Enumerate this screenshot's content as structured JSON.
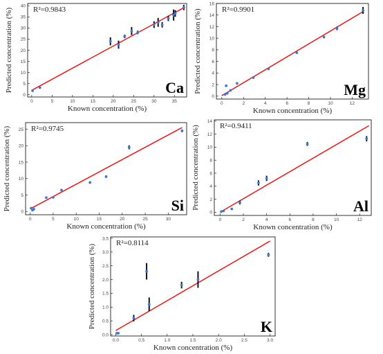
{
  "chart_data": [
    {
      "type": "scatter",
      "element": "Ca",
      "r2": "R²=0.9843",
      "xlabel": "Known concentration  (%)",
      "ylabel": "Predicted  concentration  (%)",
      "xlim": [
        -1,
        38
      ],
      "ylim": [
        -1,
        41
      ],
      "xticks": [
        0,
        5,
        10,
        15,
        20,
        25,
        30,
        35
      ],
      "yticks": [
        0,
        5,
        10,
        15,
        20,
        25,
        30,
        35,
        40
      ],
      "points": [
        {
          "x": 0.2,
          "y": 1.8,
          "err": 0.3
        },
        {
          "x": 2.0,
          "y": 3.2,
          "err": 0.3
        },
        {
          "x": 19.3,
          "y": 24.0,
          "err": 1.8
        },
        {
          "x": 21.3,
          "y": 22.5,
          "err": 1.8
        },
        {
          "x": 22.8,
          "y": 26.2,
          "err": 0.8
        },
        {
          "x": 24.5,
          "y": 28.6,
          "err": 1.8
        },
        {
          "x": 26.0,
          "y": 28.0,
          "err": 0.8
        },
        {
          "x": 30.0,
          "y": 31.5,
          "err": 1.5
        },
        {
          "x": 31.0,
          "y": 32.5,
          "err": 2.0
        },
        {
          "x": 32.0,
          "y": 31.4,
          "err": 1.2
        },
        {
          "x": 33.5,
          "y": 34.3,
          "err": 1.2
        },
        {
          "x": 34.8,
          "y": 35.8,
          "err": 2.5
        },
        {
          "x": 35.2,
          "y": 36.5,
          "err": 1.5
        },
        {
          "x": 37.3,
          "y": 39.2,
          "err": 1.2
        }
      ],
      "fit": [
        [
          0,
          2.0
        ],
        [
          37.5,
          39.3
        ]
      ]
    },
    {
      "type": "scatter",
      "element": "Mg",
      "r2": "R²=0.9901",
      "xlabel": "Known concentration  (%)",
      "ylabel": "Predicted  concentration  (%)",
      "xlim": [
        -0.5,
        13.5
      ],
      "ylim": [
        -0.5,
        16
      ],
      "xticks": [
        0,
        2,
        4,
        6,
        8,
        10,
        12
      ],
      "yticks": [
        0,
        2,
        4,
        6,
        8,
        10,
        12,
        14,
        16
      ],
      "points": [
        {
          "x": 0.3,
          "y": 0.3,
          "err": 0.2
        },
        {
          "x": 0.4,
          "y": 1.8,
          "err": 0.15
        },
        {
          "x": 0.5,
          "y": 0.5,
          "err": 0.2
        },
        {
          "x": 0.8,
          "y": 1.0,
          "err": 0.15
        },
        {
          "x": 1.4,
          "y": 2.2,
          "err": 0.15
        },
        {
          "x": 2.9,
          "y": 3.2,
          "err": 0.15
        },
        {
          "x": 4.3,
          "y": 4.7,
          "err": 0.15
        },
        {
          "x": 6.9,
          "y": 7.5,
          "err": 0.15
        },
        {
          "x": 9.4,
          "y": 10.2,
          "err": 0.2
        },
        {
          "x": 10.6,
          "y": 11.7,
          "err": 0.3
        },
        {
          "x": 13.0,
          "y": 14.8,
          "err": 0.6
        }
      ],
      "fit": [
        [
          0,
          0.1
        ],
        [
          13,
          14.6
        ]
      ]
    },
    {
      "type": "scatter",
      "element": "Si",
      "r2": "R²=0.9745",
      "xlabel": "Known concentration  (%)",
      "ylabel": "Predicted  concentration  (%)",
      "xlim": [
        -1,
        34
      ],
      "ylim": [
        -1,
        27
      ],
      "xticks": [
        0,
        5,
        10,
        15,
        20,
        25,
        30
      ],
      "yticks": [
        0,
        5,
        10,
        15,
        20,
        25
      ],
      "points": [
        {
          "x": 0.2,
          "y": 1.0,
          "err": 0.3
        },
        {
          "x": 0.5,
          "y": 0.4,
          "err": 0.3
        },
        {
          "x": 0.8,
          "y": 0.7,
          "err": 0.3
        },
        {
          "x": 3.5,
          "y": 4.2,
          "err": 0.3
        },
        {
          "x": 5.0,
          "y": 4.3,
          "err": 0.3
        },
        {
          "x": 6.8,
          "y": 6.5,
          "err": 0.3
        },
        {
          "x": 13.0,
          "y": 8.8,
          "err": 0.3
        },
        {
          "x": 16.5,
          "y": 10.6,
          "err": 0.4
        },
        {
          "x": 21.5,
          "y": 19.5,
          "err": 0.6
        },
        {
          "x": 33.0,
          "y": 24.5,
          "err": 0.4
        }
      ],
      "fit": [
        [
          0,
          0.8
        ],
        [
          33,
          25.5
        ]
      ]
    },
    {
      "type": "scatter",
      "element": "Al",
      "r2": "R²=0.9411",
      "xlabel": "Known concentration  (%)",
      "ylabel": "Predicted  concentration  (%)",
      "xlim": [
        -0.5,
        13
      ],
      "ylim": [
        -0.5,
        14.2
      ],
      "xticks": [
        0,
        2,
        4,
        6,
        8,
        10,
        12
      ],
      "yticks": [
        0,
        2,
        4,
        6,
        8,
        10,
        12,
        14
      ],
      "points": [
        {
          "x": 0.1,
          "y": 0.1,
          "err": 0.1
        },
        {
          "x": 0.3,
          "y": 0.2,
          "err": 0.1
        },
        {
          "x": 1.0,
          "y": 0.5,
          "err": 0.1
        },
        {
          "x": 1.7,
          "y": 1.5,
          "err": 0.3
        },
        {
          "x": 3.3,
          "y": 4.5,
          "err": 0.4
        },
        {
          "x": 4.0,
          "y": 5.2,
          "err": 0.4
        },
        {
          "x": 7.5,
          "y": 10.5,
          "err": 0.3
        },
        {
          "x": 12.6,
          "y": 11.3,
          "err": 0.4
        }
      ],
      "fit": [
        [
          0,
          0.0
        ],
        [
          12.8,
          13.3
        ]
      ]
    },
    {
      "type": "scatter",
      "element": "K",
      "r2": "R²=0.8114",
      "xlabel": "Known concentration  (%)",
      "ylabel": "Predicted  concentration  (%)",
      "xlim": [
        -0.1,
        3.1
      ],
      "ylim": [
        -0.05,
        3.55
      ],
      "xticks": [
        "0.0",
        "0.5",
        "1.0",
        "1.5",
        "2.0",
        "2.5",
        "3.0"
      ],
      "yticks": [
        "0.0",
        "0.5",
        "1.0",
        "1.5",
        "2.0",
        "2.5",
        "3.0",
        "3.5"
      ],
      "points": [
        {
          "x": 0.02,
          "y": 0.05,
          "err": 0.02
        },
        {
          "x": 0.05,
          "y": 0.05,
          "err": 0.02
        },
        {
          "x": 0.35,
          "y": 0.6,
          "err": 0.12
        },
        {
          "x": 0.6,
          "y": 2.3,
          "err": 0.3
        },
        {
          "x": 0.65,
          "y": 1.1,
          "err": 0.25
        },
        {
          "x": 1.28,
          "y": 1.8,
          "err": 0.12
        },
        {
          "x": 1.6,
          "y": 2.0,
          "err": 0.3
        },
        {
          "x": 2.97,
          "y": 2.9,
          "err": 0.07
        }
      ],
      "fit": [
        [
          0,
          0.15
        ],
        [
          3.0,
          3.4
        ]
      ]
    }
  ]
}
